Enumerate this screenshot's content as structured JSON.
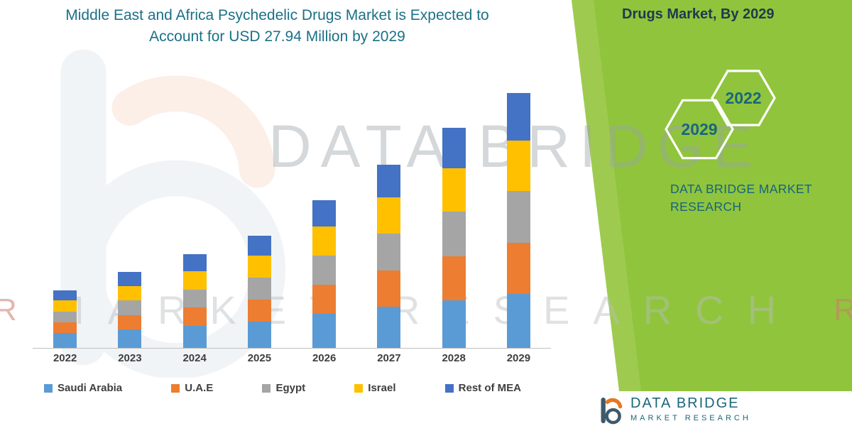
{
  "header": {
    "title": "Middle East and Africa Psychedelic Drugs Market is Expected to Account for USD 27.94 Million by 2029"
  },
  "side_panel": {
    "heading": "Drugs Market, By 2029",
    "badge_primary": "2029",
    "badge_secondary": "2022",
    "brand_line1": "DATA BRIDGE MARKET",
    "brand_line2": "RESEARCH",
    "panel_color": "#90C43C"
  },
  "watermark": {
    "line1": "DATA BRIDGE",
    "line2": "MARKET RESEARCH",
    "edge_mark_left": "R",
    "edge_mark_right": "R"
  },
  "footer": {
    "brand": "DATA BRIDGE",
    "brand_sub": "MARKET RESEARCH"
  },
  "chart_data": {
    "type": "bar",
    "stacked": true,
    "title": "Middle East and Africa Psychedelic Drugs Market is Expected to Account for USD 27.94 Million by 2029",
    "unit": "USD Million",
    "xlabel": "",
    "ylabel": "",
    "ylim": [
      0,
      29
    ],
    "grid": false,
    "legend_position": "bottom",
    "categories": [
      "2022",
      "2023",
      "2024",
      "2025",
      "2026",
      "2027",
      "2028",
      "2029"
    ],
    "series": [
      {
        "name": "Saudi Arabia",
        "color": "#5B9BD5",
        "values": [
          1.6,
          2.0,
          2.4,
          2.9,
          3.7,
          4.5,
          5.2,
          5.9
        ]
      },
      {
        "name": "U.A.E",
        "color": "#ED7D31",
        "values": [
          1.2,
          1.6,
          2.0,
          2.4,
          3.2,
          4.0,
          4.8,
          5.6
        ]
      },
      {
        "name": "Egypt",
        "color": "#A5A5A5",
        "values": [
          1.2,
          1.6,
          2.0,
          2.4,
          3.2,
          4.0,
          4.9,
          5.7
        ]
      },
      {
        "name": "Israel",
        "color": "#FFC000",
        "values": [
          1.2,
          1.6,
          2.0,
          2.4,
          3.2,
          4.0,
          4.8,
          5.5
        ]
      },
      {
        "name": "Rest of MEA",
        "color": "#4472C4",
        "values": [
          1.1,
          1.5,
          1.9,
          2.2,
          2.9,
          3.6,
          4.4,
          5.2
        ]
      }
    ],
    "totals": [
      6.3,
      8.3,
      10.3,
      12.3,
      16.2,
      20.1,
      24.1,
      27.94
    ]
  }
}
